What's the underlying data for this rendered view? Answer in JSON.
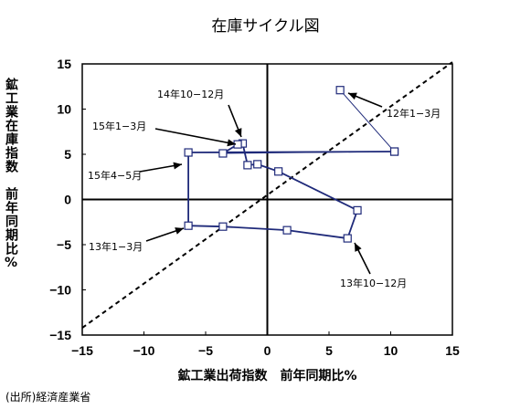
{
  "chart_data": {
    "type": "line",
    "title": "在庫サイクル図",
    "xlabel": "鉱工業出荷指数　前年同期比%",
    "ylabel": "鉱工業在庫指数　前年同期比%",
    "xlim": [
      -15,
      15
    ],
    "ylim": [
      -15,
      15
    ],
    "x_ticks": [
      -15,
      -10,
      -5,
      0,
      5,
      10,
      15
    ],
    "y_ticks": [
      15,
      10,
      5,
      0,
      -5,
      -10,
      -15
    ],
    "x_tick_labels": [
      "−15",
      "−10",
      "−5",
      "0",
      "5",
      "10",
      "15"
    ],
    "y_tick_labels": [
      "15",
      "10",
      "5",
      "0",
      "−5",
      "−10",
      "−15"
    ],
    "grid": false,
    "reference_line": {
      "style": "dashed",
      "from": [
        -15,
        -14.2
      ],
      "to": [
        15,
        15.2
      ]
    },
    "series": [
      {
        "color": "#1f2a7a",
        "marker": "square-open",
        "points": [
          {
            "x": 5.9,
            "y": 12.1
          },
          {
            "x": 10.3,
            "y": 5.3
          },
          {
            "x": -6.4,
            "y": 5.2
          },
          {
            "x": -6.4,
            "y": -2.9
          },
          {
            "x": -3.6,
            "y": -3.0
          },
          {
            "x": 1.6,
            "y": -3.4
          },
          {
            "x": 6.5,
            "y": -4.3
          },
          {
            "x": 7.3,
            "y": -1.2
          },
          {
            "x": 0.9,
            "y": 3.1
          },
          {
            "x": -0.8,
            "y": 3.9
          },
          {
            "x": -1.6,
            "y": 3.8
          },
          {
            "x": -2.0,
            "y": 6.2
          },
          {
            "x": -2.4,
            "y": 6.1
          },
          {
            "x": -3.6,
            "y": 5.1
          },
          {
            "x": 10.3,
            "y": 5.3
          }
        ]
      }
    ],
    "annotations": [
      {
        "text": "12年1−3月"
      },
      {
        "text": "13年1−3月"
      },
      {
        "text": "13年10−12月"
      },
      {
        "text": "14年10−12月"
      },
      {
        "text": "15年1−3月"
      },
      {
        "text": "15年4−5月"
      }
    ]
  },
  "source_note": "(出所)経済産業省"
}
